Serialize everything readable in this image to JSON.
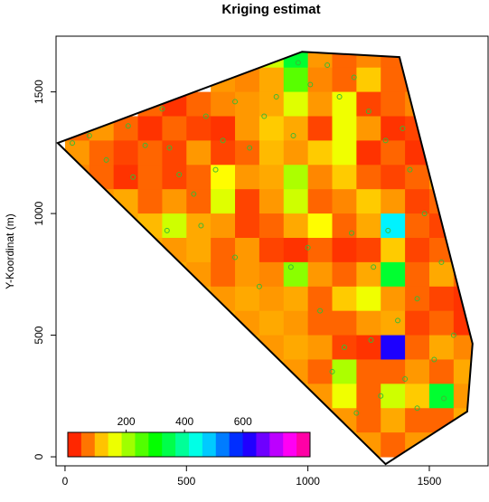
{
  "chart_data": {
    "type": "heatmap",
    "title": "Kriging estimat",
    "y_label": "Y-Koordinat (m)",
    "xlim": [
      -37,
      1742
    ],
    "ylim": [
      -37,
      1729
    ],
    "xticks": [
      0,
      500,
      1000,
      1500
    ],
    "yticks": [
      0,
      500,
      1000,
      1500
    ],
    "zlim": [
      0,
      830
    ],
    "zticks": [
      200,
      400,
      600
    ],
    "grid": {
      "x": [
        50,
        150,
        250,
        350,
        450,
        550,
        650,
        750,
        850,
        950,
        1050,
        1150,
        1250,
        1350,
        1450,
        1550,
        1650
      ],
      "y": [
        1650,
        1550,
        1450,
        1350,
        1250,
        1150,
        1050,
        950,
        850,
        750,
        650,
        550,
        450,
        350,
        250,
        150,
        50
      ],
      "values": [
        [
          null,
          null,
          null,
          null,
          null,
          null,
          90,
          100,
          180,
          330,
          90,
          60,
          80,
          60,
          null,
          null,
          null
        ],
        [
          null,
          null,
          null,
          null,
          null,
          null,
          90,
          80,
          100,
          250,
          80,
          60,
          120,
          60,
          60,
          null,
          null
        ],
        [
          null,
          null,
          null,
          60,
          30,
          60,
          80,
          90,
          100,
          170,
          90,
          160,
          40,
          60,
          80,
          null,
          null
        ],
        [
          60,
          90,
          60,
          30,
          60,
          40,
          30,
          90,
          120,
          100,
          40,
          160,
          90,
          30,
          40,
          80,
          null
        ],
        [
          90,
          60,
          40,
          60,
          40,
          90,
          40,
          60,
          110,
          90,
          120,
          160,
          30,
          60,
          30,
          60,
          null
        ],
        [
          80,
          60,
          30,
          60,
          40,
          60,
          150,
          90,
          100,
          200,
          80,
          120,
          60,
          40,
          60,
          90,
          null
        ],
        [
          null,
          90,
          100,
          60,
          90,
          60,
          170,
          40,
          90,
          180,
          60,
          80,
          120,
          90,
          40,
          60,
          null
        ],
        [
          null,
          null,
          100,
          110,
          180,
          100,
          90,
          40,
          60,
          100,
          150,
          60,
          100,
          460,
          60,
          40,
          80
        ],
        [
          null,
          null,
          null,
          100,
          90,
          100,
          60,
          90,
          40,
          30,
          60,
          30,
          40,
          120,
          40,
          60,
          100
        ],
        [
          null,
          null,
          null,
          null,
          100,
          90,
          60,
          90,
          80,
          220,
          90,
          60,
          100,
          330,
          60,
          100,
          60
        ],
        [
          null,
          null,
          null,
          null,
          null,
          100,
          90,
          100,
          90,
          100,
          60,
          120,
          160,
          90,
          60,
          40,
          30
        ],
        [
          null,
          null,
          null,
          null,
          null,
          null,
          100,
          90,
          100,
          90,
          60,
          60,
          90,
          100,
          40,
          60,
          30
        ],
        [
          null,
          null,
          null,
          null,
          null,
          null,
          null,
          100,
          90,
          100,
          90,
          40,
          30,
          620,
          60,
          100,
          80
        ],
        [
          null,
          null,
          null,
          null,
          null,
          null,
          null,
          null,
          100,
          90,
          60,
          200,
          60,
          60,
          90,
          60,
          100
        ],
        [
          null,
          null,
          null,
          null,
          null,
          null,
          null,
          null,
          null,
          100,
          90,
          160,
          60,
          180,
          120,
          330,
          90
        ],
        [
          null,
          null,
          null,
          null,
          null,
          null,
          null,
          null,
          null,
          null,
          100,
          90,
          60,
          100,
          60,
          60,
          100
        ],
        [
          null,
          null,
          null,
          null,
          null,
          null,
          null,
          null,
          null,
          null,
          null,
          100,
          90,
          60,
          90,
          90,
          null
        ]
      ]
    },
    "boundary": {
      "x": [
        -30,
        976,
        1377,
        1678,
        1656,
        1320
      ],
      "y": [
        1290,
        1665,
        1643,
        465,
        186,
        -30
      ]
    },
    "sample_points": {
      "color": "#3cb832",
      "x": [
        30,
        100,
        170,
        260,
        280,
        330,
        400,
        430,
        470,
        530,
        580,
        620,
        650,
        700,
        760,
        820,
        870,
        940,
        960,
        1010,
        1080,
        1130,
        1190,
        1250,
        1320,
        1390,
        1420,
        1480,
        1330,
        1270,
        1180,
        1000,
        930,
        800,
        700,
        560,
        420,
        1050,
        1150,
        1260,
        1370,
        1450,
        1520,
        1400,
        1300,
        1200,
        1450,
        1560,
        1600,
        1550,
        1100
      ],
      "y": [
        1290,
        1320,
        1220,
        1360,
        1150,
        1280,
        1430,
        1270,
        1160,
        1080,
        1400,
        1180,
        1300,
        1460,
        1270,
        1400,
        1480,
        1320,
        1620,
        1530,
        1610,
        1480,
        1560,
        1420,
        1300,
        1350,
        1180,
        1000,
        930,
        780,
        920,
        860,
        780,
        700,
        820,
        950,
        930,
        600,
        450,
        480,
        560,
        650,
        400,
        320,
        250,
        180,
        200,
        240,
        500,
        800,
        350
      ]
    }
  }
}
